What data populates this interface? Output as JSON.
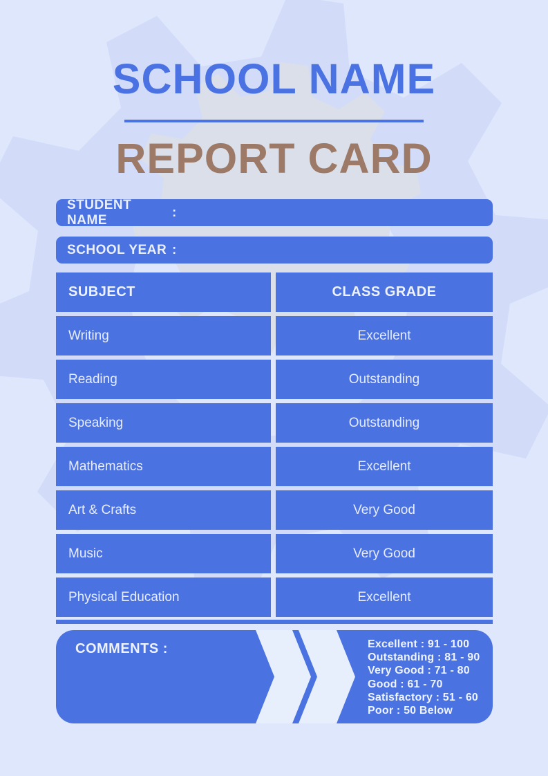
{
  "colors": {
    "background": "#dfe7fc",
    "primary_blue": "#4a72e1",
    "title_blue": "#4a72e2",
    "subtitle_brown": "#9c7a67",
    "light_text": "#e9effd",
    "watermark_lavender": "#d2dcf8",
    "watermark_gray": "#dbdfe9"
  },
  "header": {
    "school_name": "SCHOOL NAME",
    "report_title": "REPORT CARD"
  },
  "student_fields": [
    {
      "label": "STUDENT NAME",
      "colon": ":",
      "value": ""
    },
    {
      "label": "SCHOOL YEAR",
      "colon": ":",
      "value": ""
    }
  ],
  "grades_table": {
    "headers": {
      "subject": "SUBJECT",
      "grade": "CLASS GRADE"
    },
    "rows": [
      {
        "subject": "Writing",
        "grade": "Excellent"
      },
      {
        "subject": "Reading",
        "grade": "Outstanding"
      },
      {
        "subject": "Speaking",
        "grade": "Outstanding"
      },
      {
        "subject": "Mathematics",
        "grade": "Excellent"
      },
      {
        "subject": "Art & Crafts",
        "grade": "Very Good"
      },
      {
        "subject": "Music",
        "grade": "Very Good"
      },
      {
        "subject": "Physical Education",
        "grade": "Excellent"
      }
    ]
  },
  "comments": {
    "label": "COMMENTS :",
    "value": ""
  },
  "grading_scale": [
    "Excellent : 91 - 100",
    "Outstanding : 81 - 90",
    "Very Good : 71 - 80",
    "Good : 61 - 70",
    "Satisfactory : 51 - 60",
    "Poor : 50 Below"
  ]
}
